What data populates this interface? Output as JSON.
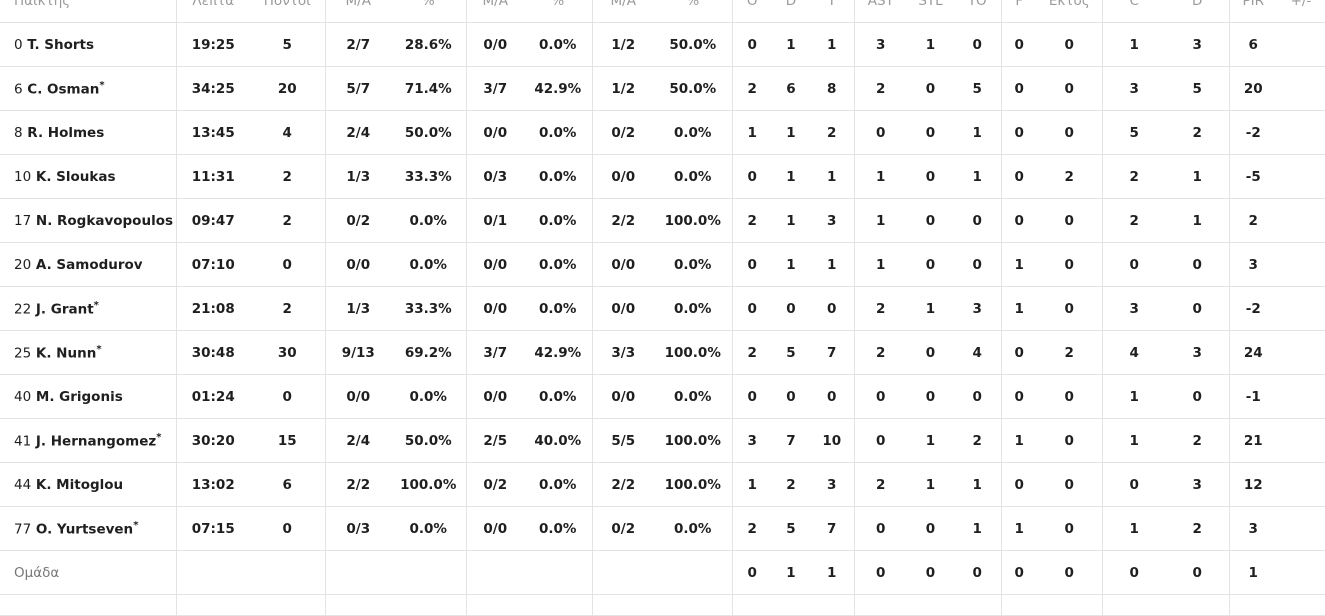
{
  "headers": [
    "Παίκτης",
    "Λεπτά",
    "Πόντοι",
    "Μ/Α",
    "%",
    "Μ/Α",
    "%",
    "Μ/Α",
    "%",
    "Ο",
    "D",
    "Τ",
    "AST",
    "STL",
    "TO",
    "F",
    "Εκτός",
    "C",
    "D",
    "PIR",
    "+/-"
  ],
  "players": [
    {
      "num": "0",
      "name": "T. Shorts",
      "star": false,
      "stats": [
        "19:25",
        "5",
        "2/7",
        "28.6%",
        "0/0",
        "0.0%",
        "1/2",
        "50.0%",
        "0",
        "1",
        "1",
        "3",
        "1",
        "0",
        "0",
        "0",
        "1",
        "3",
        "6",
        ""
      ]
    },
    {
      "num": "6",
      "name": "C. Osman",
      "star": true,
      "stats": [
        "34:25",
        "20",
        "5/7",
        "71.4%",
        "3/7",
        "42.9%",
        "1/2",
        "50.0%",
        "2",
        "6",
        "8",
        "2",
        "0",
        "5",
        "0",
        "0",
        "3",
        "5",
        "20",
        ""
      ]
    },
    {
      "num": "8",
      "name": "R. Holmes",
      "star": false,
      "stats": [
        "13:45",
        "4",
        "2/4",
        "50.0%",
        "0/0",
        "0.0%",
        "0/2",
        "0.0%",
        "1",
        "1",
        "2",
        "0",
        "0",
        "1",
        "0",
        "0",
        "5",
        "2",
        "-2",
        ""
      ]
    },
    {
      "num": "10",
      "name": "K. Sloukas",
      "star": false,
      "stats": [
        "11:31",
        "2",
        "1/3",
        "33.3%",
        "0/3",
        "0.0%",
        "0/0",
        "0.0%",
        "0",
        "1",
        "1",
        "1",
        "0",
        "1",
        "0",
        "2",
        "2",
        "1",
        "-5",
        ""
      ]
    },
    {
      "num": "17",
      "name": "N. Rogkavopoulos",
      "star": false,
      "stats": [
        "09:47",
        "2",
        "0/2",
        "0.0%",
        "0/1",
        "0.0%",
        "2/2",
        "100.0%",
        "2",
        "1",
        "3",
        "1",
        "0",
        "0",
        "0",
        "0",
        "2",
        "1",
        "2",
        ""
      ]
    },
    {
      "num": "20",
      "name": "A. Samodurov",
      "star": false,
      "stats": [
        "07:10",
        "0",
        "0/0",
        "0.0%",
        "0/0",
        "0.0%",
        "0/0",
        "0.0%",
        "0",
        "1",
        "1",
        "1",
        "0",
        "0",
        "1",
        "0",
        "0",
        "0",
        "3",
        ""
      ]
    },
    {
      "num": "22",
      "name": "J. Grant",
      "star": true,
      "stats": [
        "21:08",
        "2",
        "1/3",
        "33.3%",
        "0/0",
        "0.0%",
        "0/0",
        "0.0%",
        "0",
        "0",
        "0",
        "2",
        "1",
        "3",
        "1",
        "0",
        "3",
        "0",
        "-2",
        ""
      ]
    },
    {
      "num": "25",
      "name": "K. Nunn",
      "star": true,
      "stats": [
        "30:48",
        "30",
        "9/13",
        "69.2%",
        "3/7",
        "42.9%",
        "3/3",
        "100.0%",
        "2",
        "5",
        "7",
        "2",
        "0",
        "4",
        "0",
        "2",
        "4",
        "3",
        "24",
        ""
      ]
    },
    {
      "num": "40",
      "name": "M. Grigonis",
      "star": false,
      "stats": [
        "01:24",
        "0",
        "0/0",
        "0.0%",
        "0/0",
        "0.0%",
        "0/0",
        "0.0%",
        "0",
        "0",
        "0",
        "0",
        "0",
        "0",
        "0",
        "0",
        "1",
        "0",
        "-1",
        ""
      ]
    },
    {
      "num": "41",
      "name": "J. Hernangomez",
      "star": true,
      "stats": [
        "30:20",
        "15",
        "2/4",
        "50.0%",
        "2/5",
        "40.0%",
        "5/5",
        "100.0%",
        "3",
        "7",
        "10",
        "0",
        "1",
        "2",
        "1",
        "0",
        "1",
        "2",
        "21",
        ""
      ]
    },
    {
      "num": "44",
      "name": "K. Mitoglou",
      "star": false,
      "stats": [
        "13:02",
        "6",
        "2/2",
        "100.0%",
        "0/2",
        "0.0%",
        "2/2",
        "100.0%",
        "1",
        "2",
        "3",
        "2",
        "1",
        "1",
        "0",
        "0",
        "0",
        "3",
        "12",
        ""
      ]
    },
    {
      "num": "77",
      "name": "O. Yurtseven",
      "star": true,
      "stats": [
        "07:15",
        "0",
        "0/3",
        "0.0%",
        "0/0",
        "0.0%",
        "0/2",
        "0.0%",
        "2",
        "5",
        "7",
        "0",
        "0",
        "1",
        "1",
        "0",
        "1",
        "2",
        "3",
        ""
      ]
    }
  ],
  "team": {
    "label": "Ομάδα",
    "stats": [
      "",
      "",
      "",
      "",
      "",
      "",
      "",
      "",
      "0",
      "1",
      "1",
      "0",
      "0",
      "0",
      "0",
      "0",
      "0",
      "0",
      "1",
      ""
    ]
  }
}
